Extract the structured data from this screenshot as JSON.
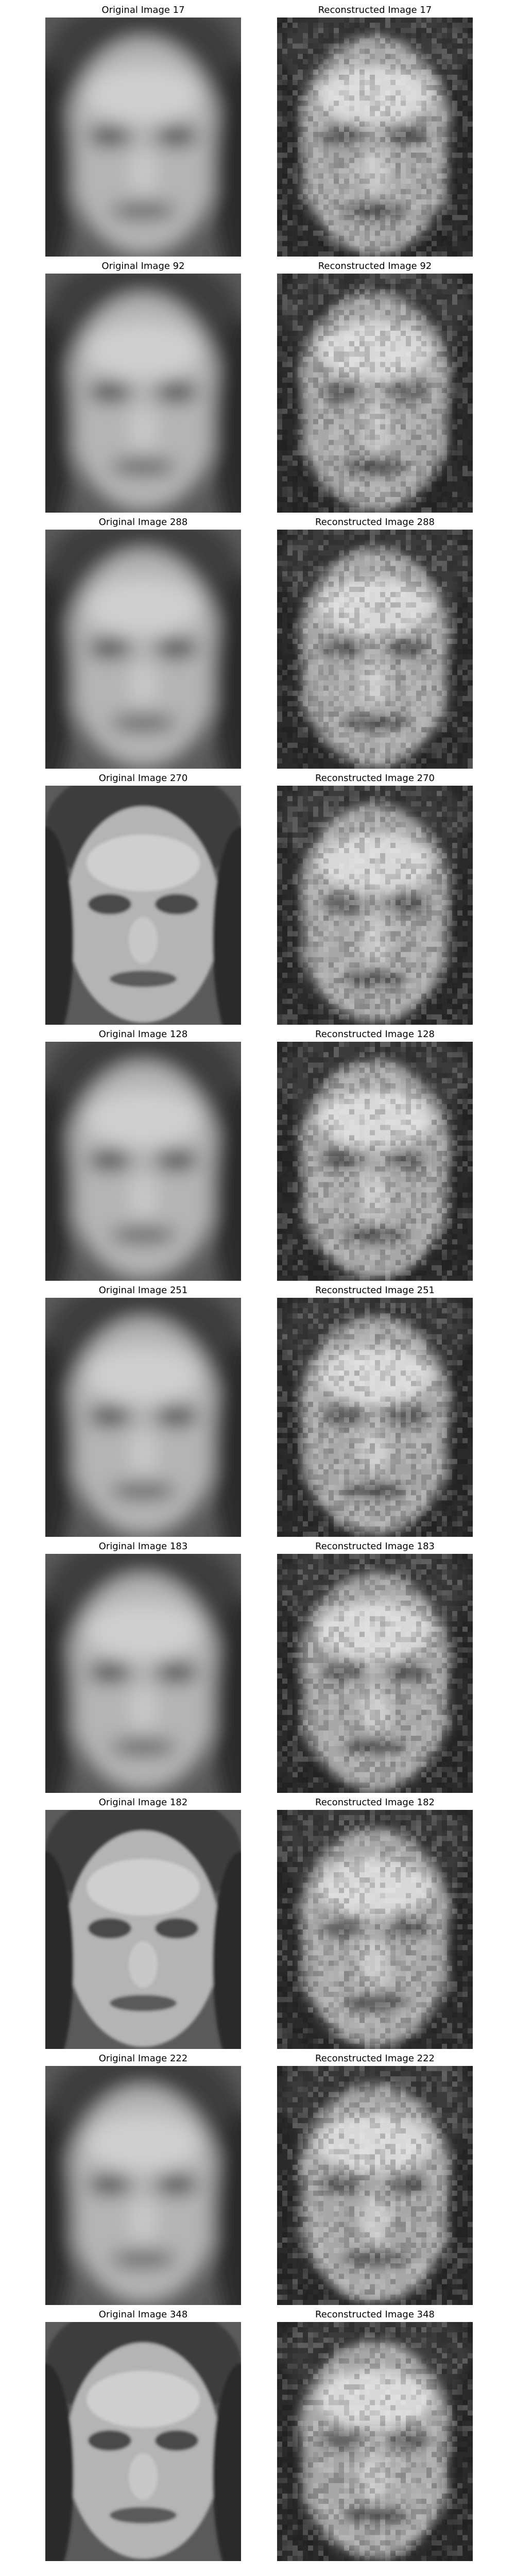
{
  "figure": {
    "rows": [
      {
        "original_title": "Original Image 17",
        "reconstructed_title": "Reconstructed Image 17",
        "original_kind": "blurred",
        "reconstructed_kind": "pixelated"
      },
      {
        "original_title": "Original Image 92",
        "reconstructed_title": "Reconstructed Image 92",
        "original_kind": "blurred",
        "reconstructed_kind": "pixelated"
      },
      {
        "original_title": "Original Image 288",
        "reconstructed_title": "Reconstructed Image 288",
        "original_kind": "blurred",
        "reconstructed_kind": "pixelated"
      },
      {
        "original_title": "Original Image 270",
        "reconstructed_title": "Reconstructed Image 270",
        "original_kind": "sharp",
        "reconstructed_kind": "pixelated"
      },
      {
        "original_title": "Original Image 128",
        "reconstructed_title": "Reconstructed Image 128",
        "original_kind": "blurred",
        "reconstructed_kind": "pixelated"
      },
      {
        "original_title": "Original Image 251",
        "reconstructed_title": "Reconstructed Image 251",
        "original_kind": "blurred",
        "reconstructed_kind": "pixelated"
      },
      {
        "original_title": "Original Image 183",
        "reconstructed_title": "Reconstructed Image 183",
        "original_kind": "blurred",
        "reconstructed_kind": "pixelated"
      },
      {
        "original_title": "Original Image 182",
        "reconstructed_title": "Reconstructed Image 182",
        "original_kind": "sharp",
        "reconstructed_kind": "pixelated"
      },
      {
        "original_title": "Original Image 222",
        "reconstructed_title": "Reconstructed Image 222",
        "original_kind": "blurred",
        "reconstructed_kind": "pixelated"
      },
      {
        "original_title": "Original Image 348",
        "reconstructed_title": "Reconstructed Image 348",
        "original_kind": "sharp",
        "reconstructed_kind": "pixelated"
      }
    ]
  },
  "colors": {
    "background": "#ffffff",
    "title_text": "#000000"
  }
}
